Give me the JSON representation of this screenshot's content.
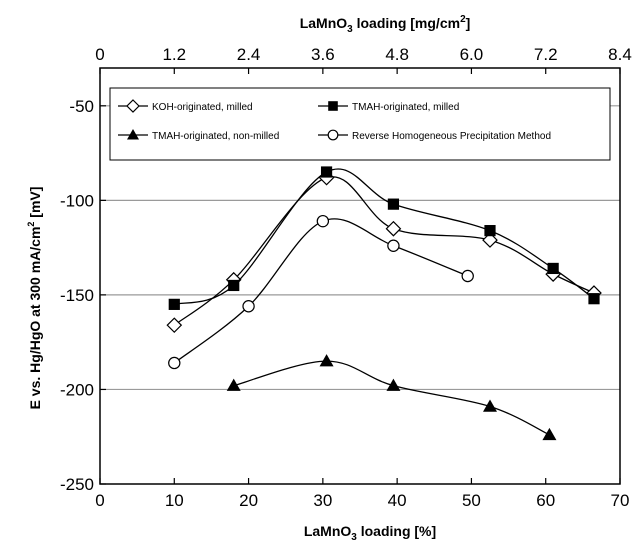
{
  "chart_data": {
    "type": "line",
    "xlabel": "LaMnO3 loading [%]",
    "xlabel_parts": {
      "pre": "LaMnO",
      "sub": "3",
      "post": " loading [%]"
    },
    "x2label_parts": {
      "pre": "LaMnO",
      "sub": "3",
      "post": " loading [mg/cm",
      "sup": "2",
      "end": "]"
    },
    "ylabel_parts": {
      "pre": "E vs. Hg/HgO at 300 mA/cm",
      "sup": "2",
      "post": "  [mV]"
    },
    "xlim": [
      0,
      70
    ],
    "ylim": [
      -250,
      -30
    ],
    "x_ticks": [
      0,
      10,
      20,
      30,
      40,
      50,
      60,
      70
    ],
    "x_tick_labels": [
      "0",
      "10",
      "20",
      "30",
      "40",
      "50",
      "60",
      "70"
    ],
    "y_ticks": [
      -250,
      -200,
      -150,
      -100,
      -50
    ],
    "y_tick_labels": [
      "-250",
      "-200",
      "-150",
      "-100",
      "-50"
    ],
    "x2_ticks": [
      0,
      1.2,
      2.4,
      3.6,
      4.8,
      6.0,
      7.2,
      8.4
    ],
    "x2_tick_labels": [
      "0",
      "1.2",
      "2.4",
      "3.6",
      "4.8",
      "6.0",
      "7.2",
      "8.4"
    ],
    "x2_max": 8.4,
    "grid": "horizontal",
    "legend_placement": "top",
    "series": [
      {
        "name": "KOH-originated, milled",
        "marker": "diamond-open",
        "x": [
          10,
          18,
          30.5,
          39.5,
          52.5,
          61,
          66.5
        ],
        "y": [
          -166,
          -142,
          -88,
          -115,
          -121,
          -139,
          -149
        ]
      },
      {
        "name": "TMAH-originated, milled",
        "marker": "square-filled",
        "x": [
          10,
          18,
          30.5,
          39.5,
          52.5,
          61,
          66.5
        ],
        "y": [
          -155,
          -145,
          -85,
          -102,
          -116,
          -136,
          -152
        ]
      },
      {
        "name": "TMAH-originated, non-milled",
        "marker": "triangle-filled",
        "x": [
          18,
          30.5,
          39.5,
          52.5,
          60.5
        ],
        "y": [
          -198,
          -185,
          -198,
          -209,
          -224
        ]
      },
      {
        "name": "Reverse Homogeneous Precipitation Method",
        "marker": "circle-open",
        "x": [
          10,
          20,
          30,
          39.5,
          49.5
        ],
        "y": [
          -186,
          -156,
          -111,
          -124,
          -140
        ]
      }
    ]
  }
}
